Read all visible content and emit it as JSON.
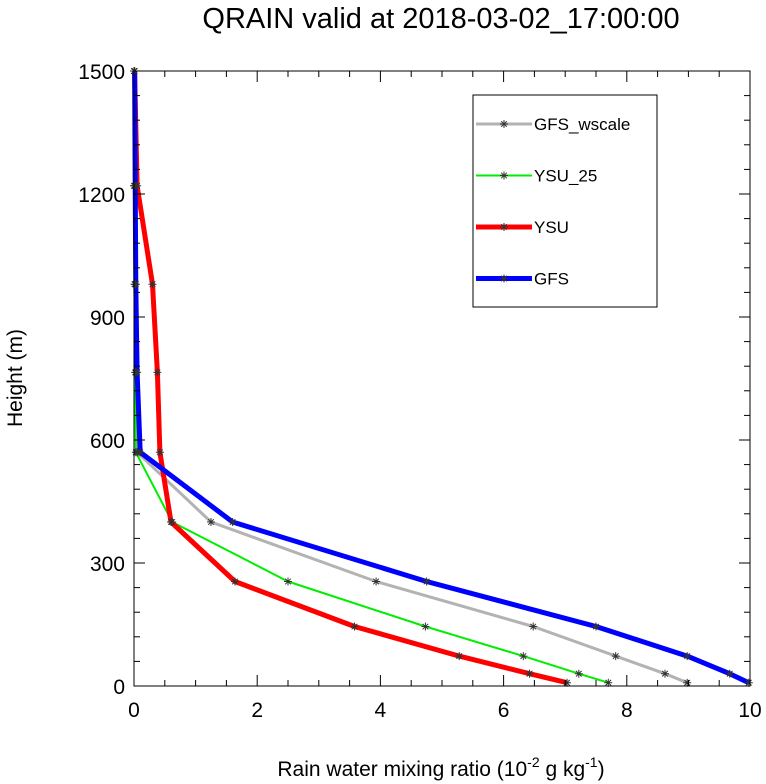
{
  "chart_data": {
    "type": "line",
    "title": "QRAIN valid at 2018-03-02_17:00:00",
    "xlabel": "Rain water mixing ratio (10",
    "xlabel_exp1": "-2",
    "xlabel_mid": " g kg",
    "xlabel_exp2": "-1",
    "xlabel_end": ")",
    "ylabel": "Height (m)",
    "xlim": [
      0,
      10
    ],
    "ylim": [
      0,
      1500
    ],
    "xticks": [
      "0",
      "2",
      "4",
      "6",
      "8",
      "10"
    ],
    "yticks": [
      "0",
      "300",
      "600",
      "900",
      "1200",
      "1500"
    ],
    "legend_position": "top-right",
    "y": [
      8,
      30,
      73,
      145,
      255,
      400,
      570,
      765,
      980,
      1220,
      1500
    ],
    "series": [
      {
        "name": "GFS_wscale",
        "color": "#b3b3b3",
        "width": 3,
        "x": [
          8.98,
          8.62,
          7.82,
          6.48,
          3.93,
          1.25,
          0.05,
          0.03,
          0.02,
          0.01,
          0.0
        ]
      },
      {
        "name": "YSU_25",
        "color": "#00ee00",
        "width": 2,
        "x": [
          7.7,
          7.22,
          6.32,
          4.73,
          2.5,
          0.62,
          0.03,
          0.02,
          0.01,
          0.0,
          0.0
        ]
      },
      {
        "name": "YSU",
        "color": "#ff0000",
        "width": 5,
        "x": [
          7.03,
          6.42,
          5.28,
          3.58,
          1.64,
          0.6,
          0.42,
          0.38,
          0.3,
          0.05,
          0.01
        ]
      },
      {
        "name": "GFS",
        "color": "#0000ff",
        "width": 5,
        "x": [
          9.98,
          9.67,
          8.98,
          7.5,
          4.75,
          1.6,
          0.1,
          0.05,
          0.03,
          0.02,
          0.01
        ]
      }
    ]
  }
}
